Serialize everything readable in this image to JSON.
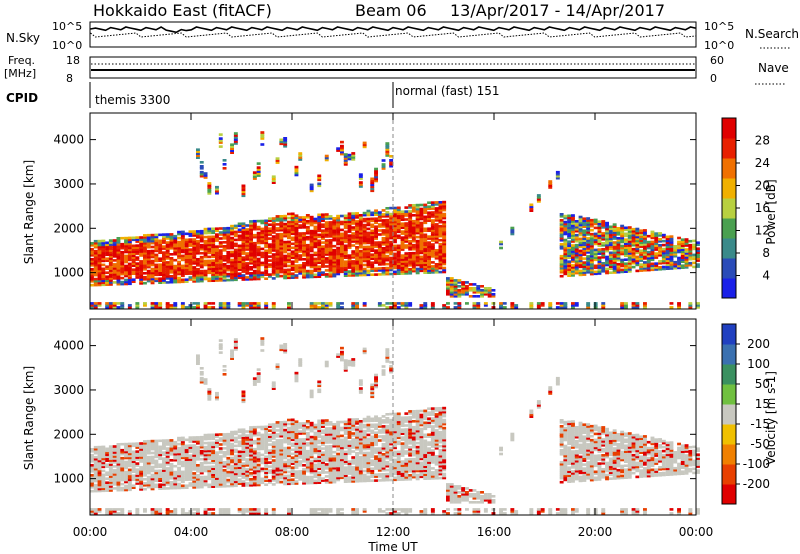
{
  "header": {
    "station": "Hokkaido East (fitACF)",
    "beam": "Beam 06",
    "date_range": "13/Apr/2017 - 14/Apr/2017"
  },
  "summary_panel": {
    "nsky_label": "N.Sky",
    "nsky_ticks": [
      "10^5",
      "10^0"
    ],
    "nsearch_label": "N.Search",
    "nsearch_ticks": [
      "10^5",
      "10^0"
    ],
    "freq_label_line1": "Freq.",
    "freq_label_line2": "[MHz]",
    "freq_ticks": [
      "18",
      "8"
    ],
    "nave_label": "Nave",
    "nave_ticks": [
      "60",
      "0"
    ],
    "cpid_label": "CPID",
    "cpid_segments": [
      {
        "label": "themis 3300",
        "start_hour": 0
      },
      {
        "label": "normal (fast) 151",
        "start_hour": 12
      }
    ]
  },
  "chart_data": [
    {
      "type": "heatmap",
      "panel": "power",
      "ylabel": "Slant Range [km]",
      "yticks": [
        1000,
        2000,
        3000,
        4000
      ],
      "ylim": [
        180,
        4600
      ],
      "xlim": [
        0,
        24
      ],
      "colorbar_label": "Power [dB]",
      "colorbar_ticks": [
        4,
        8,
        12,
        16,
        20,
        24,
        28
      ],
      "colorbar_range": [
        0,
        32
      ],
      "colors": [
        "#1a20e8",
        "#2a4bb8",
        "#3a8a8a",
        "#4aa050",
        "#b8d040",
        "#f0b000",
        "#f07000",
        "#e82000",
        "#e00000"
      ]
    },
    {
      "type": "heatmap",
      "panel": "velocity",
      "ylabel": "Slant Range [km]",
      "yticks": [
        1000,
        2000,
        3000,
        4000
      ],
      "ylim": [
        180,
        4600
      ],
      "xlim": [
        0,
        24
      ],
      "colorbar_label": "Velocity [m s-1]",
      "colorbar_ticks": [
        200,
        100,
        50,
        15,
        -15,
        -50,
        -100,
        -200
      ],
      "colors": [
        "#2040c0",
        "#3a70b0",
        "#3a9060",
        "#70c040",
        "#c8c8c0",
        "#f0c000",
        "#f08000",
        "#e84000",
        "#e00000"
      ]
    }
  ],
  "xaxis": {
    "label": "Time UT",
    "ticks": [
      "00:00",
      "04:00",
      "08:00",
      "12:00",
      "16:00",
      "20:00",
      "00:00"
    ]
  }
}
